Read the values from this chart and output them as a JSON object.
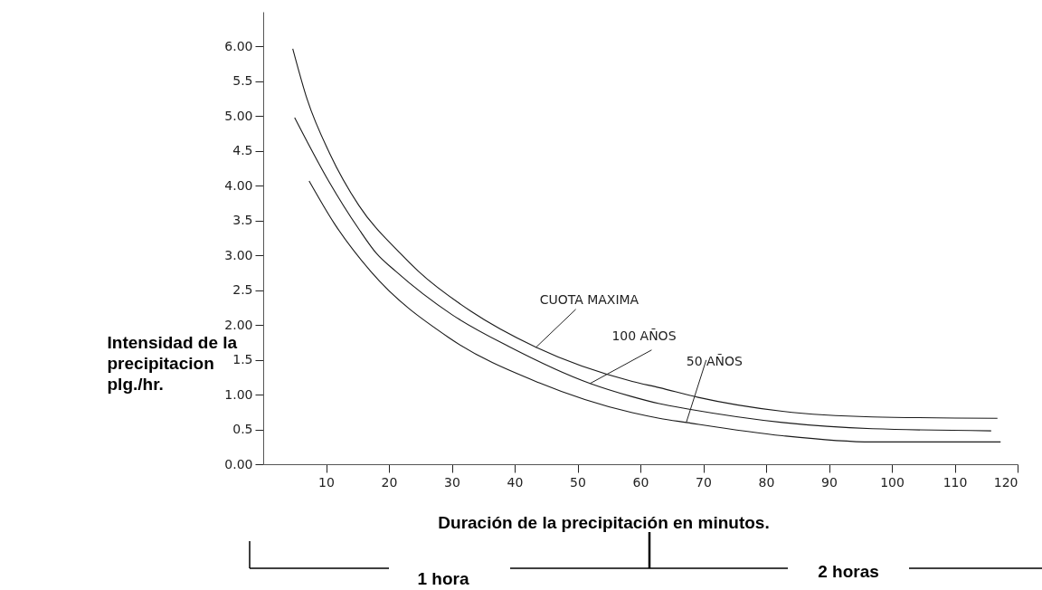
{
  "chart_data": {
    "type": "line",
    "xlabel": "Duración de la precipitación  en minutos.",
    "ylabel": "Intensidad de la precipitacion plg./hr.",
    "xlim": [
      0,
      120
    ],
    "xticks": [
      10,
      20,
      30,
      40,
      50,
      60,
      70,
      80,
      90,
      100,
      110,
      120
    ],
    "ylim": [
      0,
      6.5
    ],
    "yticks": [
      {
        "value": 0,
        "label": "0.00"
      },
      0.5,
      {
        "value": 1,
        "label": "1.00"
      },
      1.5,
      {
        "value": 2,
        "label": "2.00"
      },
      2.5,
      {
        "value": 3,
        "label": "3.00"
      },
      3.5,
      {
        "value": 4,
        "label": "4.00"
      },
      4.5,
      {
        "value": 5,
        "label": "5.00"
      },
      5.5,
      {
        "value": 6,
        "label": "6.00"
      }
    ],
    "grid": false,
    "marker": "none",
    "line_style": "solid",
    "series": [
      {
        "color": "#1a1a1a",
        "x": [
          4.7,
          7.0,
          10.6,
          15.2,
          21.8,
          24.7,
          33,
          43.4,
          58.7,
          63,
          69.2,
          82.6,
          96.9,
          116.8
        ],
        "values": [
          5.97,
          5.24,
          4.46,
          3.72,
          3.03,
          2.77,
          2.2,
          1.68,
          1.19,
          1.1,
          0.96,
          0.76,
          0.68,
          0.66
        ]
      },
      {
        "color": "#1a1a1a",
        "x": [
          5.0,
          10.4,
          15.2,
          18.0,
          21.1,
          30,
          39.1,
          52.0,
          58.7,
          63,
          67.8,
          82.6,
          96.9,
          115.8
        ],
        "values": [
          4.98,
          4.07,
          3.38,
          3.03,
          2.77,
          2.15,
          1.69,
          1.16,
          0.97,
          0.87,
          0.79,
          0.6,
          0.51,
          0.48
        ]
      },
      {
        "color": "#1a1a1a",
        "x": [
          7.3,
          11.3,
          17.1,
          29.5,
          43.9,
          58.7,
          63,
          67.3,
          82.6,
          96.9,
          117.3
        ],
        "values": [
          4.07,
          3.46,
          2.77,
          1.82,
          1.17,
          0.74,
          0.66,
          0.6,
          0.41,
          0.32,
          0.32
        ]
      }
    ],
    "annotations": [
      {
        "text": "CUOTA MAXIMA",
        "x": 43.4,
        "y": 1.68
      },
      {
        "text": "100 AÑOS",
        "x": 52,
        "y": 1.16
      },
      {
        "text": "50 AÑOS",
        "x": 67.3,
        "y": 0.6
      },
      "1 hora",
      "2 horas"
    ]
  }
}
